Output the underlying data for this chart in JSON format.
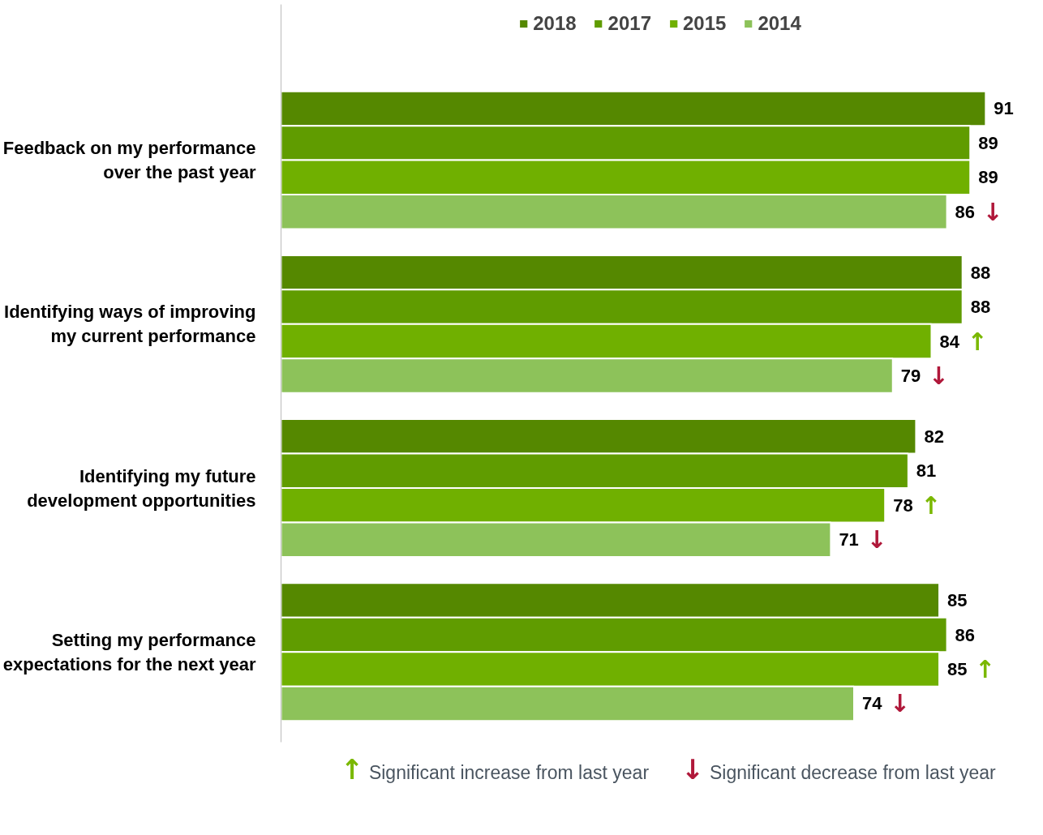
{
  "chart_data": {
    "type": "bar",
    "orientation": "horizontal",
    "data_labels": true,
    "legend": "top",
    "grid": false,
    "categories": [
      "Feedback on my performance over the past year",
      "Identifying ways of improving my current performance",
      "Identifying my future development opportunities",
      "Setting my performance expectations for the next year"
    ],
    "series": [
      {
        "name": "2018",
        "color": "#558800",
        "values": [
          91,
          88,
          82,
          85
        ]
      },
      {
        "name": "2017",
        "color": "#609c00",
        "values": [
          89,
          88,
          81,
          86
        ]
      },
      {
        "name": "2015",
        "color": "#70b000",
        "values": [
          89,
          84,
          78,
          85
        ]
      },
      {
        "name": "2014",
        "color": "#8dc25a",
        "values": [
          86,
          79,
          71,
          74
        ]
      }
    ],
    "annotations": [
      "↑ Significant increase from last year",
      "↓ Significant decrease from last year",
      {
        "text": "↓",
        "x": 86,
        "y": "Feedback on my performance over the past year"
      },
      {
        "text": "↑",
        "x": 84,
        "y": "Identifying ways of improving my current performance"
      },
      {
        "text": "↓",
        "x": 79,
        "y": "Identifying ways of improving my current performance"
      },
      {
        "text": "↑",
        "x": 78,
        "y": "Identifying my future development opportunities"
      },
      {
        "text": "↓",
        "x": 71,
        "y": "Identifying my future development opportunities"
      },
      {
        "text": "↑",
        "x": 85,
        "y": "Setting my performance expectations for the next year"
      },
      {
        "text": "↓",
        "x": 74,
        "y": "Setting my performance expectations for the next year"
      }
    ]
  }
}
